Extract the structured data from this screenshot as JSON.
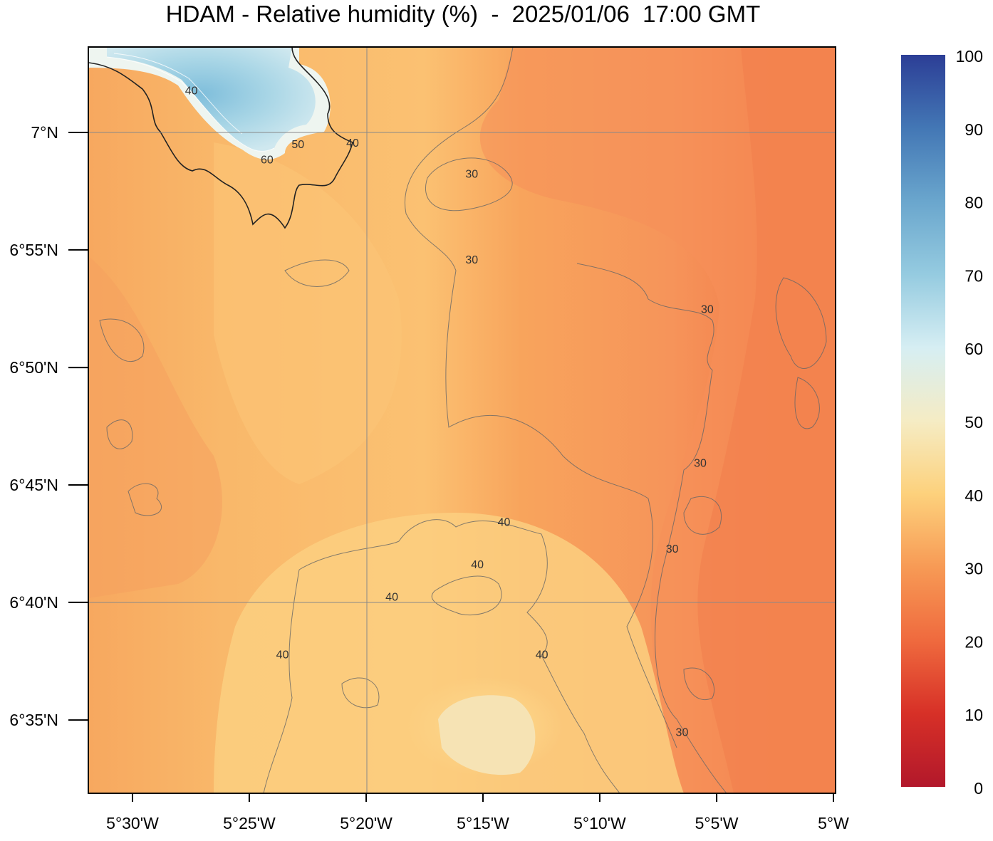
{
  "title": "HDAM - Relative humidity (%)  -  2025/01/06  17:00 GMT",
  "map": {
    "x_ticks": [
      {
        "value": -5.5,
        "label": "5°30'W"
      },
      {
        "value": -5.4167,
        "label": "5°25'W"
      },
      {
        "value": -5.3333,
        "label": "5°20'W"
      },
      {
        "value": -5.25,
        "label": "5°15'W"
      },
      {
        "value": -5.1667,
        "label": "5°10'W"
      },
      {
        "value": -5.0833,
        "label": "5°5'W"
      },
      {
        "value": -5.0,
        "label": "5°W"
      }
    ],
    "y_ticks": [
      {
        "value": 7.0,
        "label": "7°N"
      },
      {
        "value": 6.9167,
        "label": "6°55'N"
      },
      {
        "value": 6.8333,
        "label": "6°50'N"
      },
      {
        "value": 6.75,
        "label": "6°45'N"
      },
      {
        "value": 6.6667,
        "label": "6°40'N"
      },
      {
        "value": 6.5833,
        "label": "6°35'N"
      }
    ],
    "contour_labels": [
      {
        "text": "40",
        "lon": -5.458,
        "lat": 7.027
      },
      {
        "text": "60",
        "lon": -5.404,
        "lat": 6.978
      },
      {
        "text": "50",
        "lon": -5.382,
        "lat": 6.989
      },
      {
        "text": "40",
        "lon": -5.343,
        "lat": 6.99
      },
      {
        "text": "30",
        "lon": -5.258,
        "lat": 6.968
      },
      {
        "text": "30",
        "lon": -5.258,
        "lat": 6.907
      },
      {
        "text": "30",
        "lon": -5.09,
        "lat": 6.872
      },
      {
        "text": "30",
        "lon": -5.095,
        "lat": 6.763
      },
      {
        "text": "30",
        "lon": -5.115,
        "lat": 6.702
      },
      {
        "text": "40",
        "lon": -5.235,
        "lat": 6.721
      },
      {
        "text": "40",
        "lon": -5.254,
        "lat": 6.691
      },
      {
        "text": "40",
        "lon": -5.315,
        "lat": 6.668
      },
      {
        "text": "40",
        "lon": -5.393,
        "lat": 6.627
      },
      {
        "text": "40",
        "lon": -5.208,
        "lat": 6.627
      },
      {
        "text": "30",
        "lon": -5.108,
        "lat": 6.572
      }
    ]
  },
  "colorbar": {
    "ticks": [
      "0",
      "10",
      "20",
      "30",
      "40",
      "50",
      "60",
      "70",
      "80",
      "90",
      "100"
    ]
  }
}
